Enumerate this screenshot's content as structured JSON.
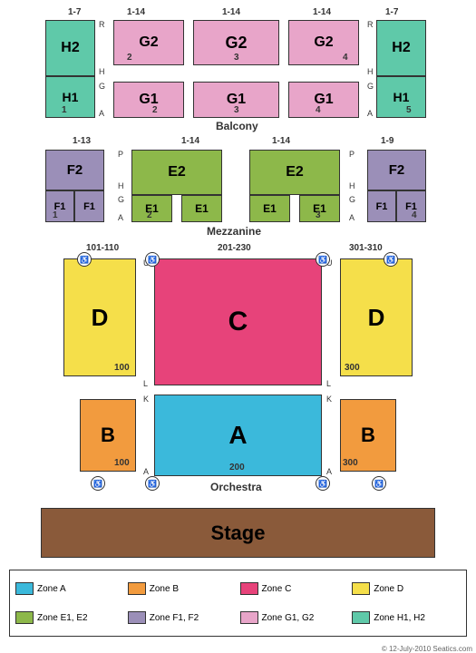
{
  "colors": {
    "zoneA": "#3bb9db",
    "zoneB": "#f29b3e",
    "zoneC": "#e7437a",
    "zoneD": "#f5df4a",
    "zoneE": "#8db84a",
    "zoneF": "#9b8fb8",
    "zoneG": "#e8a5c9",
    "zoneH": "#5fc9a9",
    "stage": "#8a5a3a",
    "border": "#333333",
    "bg": "#ffffff"
  },
  "levels": {
    "balcony": "Balcony",
    "mezzanine": "Mezzanine",
    "orchestra": "Orchestra"
  },
  "stage_label": "Stage",
  "copyright": "© 12-July-2010 Seatics.com",
  "sections": {
    "h2_l": {
      "label": "H2",
      "num": ""
    },
    "h2_r": {
      "label": "H2",
      "num": ""
    },
    "h1_l": {
      "label": "H1",
      "num": "1"
    },
    "h1_r": {
      "label": "H1",
      "num": "5"
    },
    "g2_l": {
      "label": "G2",
      "num": "2"
    },
    "g2_c": {
      "label": "G2",
      "num": "3"
    },
    "g2_r": {
      "label": "G2",
      "num": "4"
    },
    "g1_l": {
      "label": "G1",
      "num": "2"
    },
    "g1_c": {
      "label": "G1",
      "num": "3"
    },
    "g1_r": {
      "label": "G1",
      "num": "4"
    },
    "f2_l": {
      "label": "F2",
      "num": ""
    },
    "f2_r": {
      "label": "F2",
      "num": ""
    },
    "f1_l1": {
      "label": "F1",
      "num": "1"
    },
    "f1_l2": {
      "label": "F1",
      "num": ""
    },
    "f1_r1": {
      "label": "F1",
      "num": ""
    },
    "f1_r2": {
      "label": "F1",
      "num": "4"
    },
    "e2_l": {
      "label": "E2",
      "num": ""
    },
    "e2_r": {
      "label": "E2",
      "num": ""
    },
    "e1_l": {
      "label": "E1",
      "num": "2"
    },
    "e1_r": {
      "label": "E1",
      "num": "3"
    },
    "d_l": {
      "label": "D",
      "num": "100"
    },
    "d_r": {
      "label": "D",
      "num": "300"
    },
    "c": {
      "label": "C",
      "num": ""
    },
    "b_l": {
      "label": "B",
      "num": "100"
    },
    "b_r": {
      "label": "B",
      "num": "300"
    },
    "a": {
      "label": "A",
      "num": "200"
    }
  },
  "seat_ranges": {
    "h_l": "1-7",
    "h_r": "1-7",
    "g_l": "1-14",
    "g_c": "1-14",
    "g_r": "1-14",
    "f_l": "1-13",
    "f_r": "1-9",
    "e_l": "1-14",
    "e_r": "1-14",
    "d_l": "101-110",
    "c": "201-230",
    "d_r": "301-310"
  },
  "row_labels": {
    "balcony_top": "R",
    "balcony_mid": "H",
    "balcony_g": "G",
    "balcony_a": "A",
    "mezz_p": "P",
    "mezz_h": "H",
    "mezz_g": "G",
    "mezz_a": "A",
    "orch_u": "U",
    "orch_l": "L",
    "orch_k": "K",
    "orch_a": "A"
  },
  "legend": [
    {
      "label": "Zone A",
      "color": "zoneA"
    },
    {
      "label": "Zone B",
      "color": "zoneB"
    },
    {
      "label": "Zone C",
      "color": "zoneC"
    },
    {
      "label": "Zone D",
      "color": "zoneD"
    },
    {
      "label": "Zone E1, E2",
      "color": "zoneE"
    },
    {
      "label": "Zone F1, F2",
      "color": "zoneF"
    },
    {
      "label": "Zone G1, G2",
      "color": "zoneG"
    },
    {
      "label": "Zone H1, H2",
      "color": "zoneH"
    }
  ]
}
